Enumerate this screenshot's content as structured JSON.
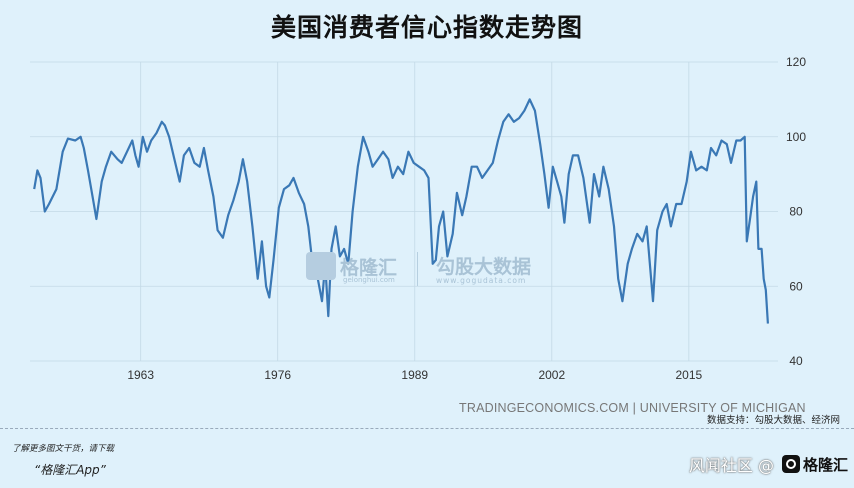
{
  "title": "美国消费者信心指数走势图",
  "source_text": "TRADINGECONOMICS.COM | UNIVERSITY OF MICHIGAN",
  "support_text": "数据支持：勾股大数据、经济网",
  "footer": {
    "download_note": "了解更多图文干货，请下载",
    "app_name": "“格隆汇App”",
    "community_text": "风闻社区 @",
    "brand": "格隆汇"
  },
  "watermarks": {
    "brand1": "格隆汇",
    "brand1_url": "gelonghui.com",
    "brand2": "勾股大数据",
    "brand2_url": "www.gogudata.com"
  },
  "colors": {
    "line": "#3a78b5",
    "background": "#dff1fb",
    "grid": "#c3d9e6"
  },
  "chart_data": {
    "type": "line",
    "title": "美国消费者信心指数走势图",
    "xlabel": "",
    "ylabel": "",
    "xlim": [
      1952.5,
      2022.7
    ],
    "ylim": [
      40,
      120
    ],
    "x_ticks": [
      1963,
      1976,
      1989,
      2002,
      2015
    ],
    "y_ticks": [
      40,
      60,
      80,
      100,
      120
    ],
    "grid": true,
    "series": [
      {
        "name": "",
        "points": [
          [
            1952.9,
            86
          ],
          [
            1953.2,
            91
          ],
          [
            1953.5,
            89
          ],
          [
            1953.9,
            80
          ],
          [
            1954.3,
            82
          ],
          [
            1955.0,
            86
          ],
          [
            1955.6,
            96
          ],
          [
            1956.1,
            99.5
          ],
          [
            1956.8,
            99
          ],
          [
            1957.3,
            100
          ],
          [
            1957.6,
            97
          ],
          [
            1958.0,
            91
          ],
          [
            1958.5,
            83
          ],
          [
            1958.8,
            78
          ],
          [
            1959.3,
            88
          ],
          [
            1959.7,
            92
          ],
          [
            1960.2,
            96
          ],
          [
            1960.8,
            94
          ],
          [
            1961.2,
            93
          ],
          [
            1961.7,
            96
          ],
          [
            1962.2,
            99
          ],
          [
            1962.5,
            95
          ],
          [
            1962.8,
            92
          ],
          [
            1963.2,
            100
          ],
          [
            1963.6,
            96
          ],
          [
            1964.0,
            99
          ],
          [
            1964.5,
            101
          ],
          [
            1965.0,
            104
          ],
          [
            1965.3,
            103
          ],
          [
            1965.7,
            100
          ],
          [
            1966.2,
            94
          ],
          [
            1966.7,
            88
          ],
          [
            1967.1,
            95
          ],
          [
            1967.6,
            97
          ],
          [
            1968.1,
            93
          ],
          [
            1968.6,
            92
          ],
          [
            1969.0,
            97
          ],
          [
            1969.4,
            91
          ],
          [
            1969.9,
            84
          ],
          [
            1970.3,
            75
          ],
          [
            1970.8,
            73
          ],
          [
            1971.3,
            79
          ],
          [
            1971.8,
            83
          ],
          [
            1972.3,
            88
          ],
          [
            1972.7,
            94
          ],
          [
            1973.1,
            88
          ],
          [
            1973.6,
            76
          ],
          [
            1974.1,
            62
          ],
          [
            1974.5,
            72
          ],
          [
            1974.9,
            60
          ],
          [
            1975.2,
            57
          ],
          [
            1975.6,
            67
          ],
          [
            1976.1,
            81
          ],
          [
            1976.6,
            86
          ],
          [
            1977.1,
            87
          ],
          [
            1977.5,
            89
          ],
          [
            1978.0,
            85
          ],
          [
            1978.5,
            82
          ],
          [
            1978.9,
            76
          ],
          [
            1979.3,
            66
          ],
          [
            1979.8,
            62
          ],
          [
            1980.2,
            56
          ],
          [
            1980.5,
            66
          ],
          [
            1980.8,
            52
          ],
          [
            1981.1,
            70
          ],
          [
            1981.5,
            76
          ],
          [
            1981.9,
            68
          ],
          [
            1982.3,
            70
          ],
          [
            1982.7,
            66
          ],
          [
            1983.1,
            80
          ],
          [
            1983.6,
            92
          ],
          [
            1984.1,
            100
          ],
          [
            1984.6,
            96
          ],
          [
            1985.0,
            92
          ],
          [
            1985.5,
            94
          ],
          [
            1986.0,
            96
          ],
          [
            1986.5,
            94
          ],
          [
            1986.9,
            89
          ],
          [
            1987.4,
            92
          ],
          [
            1987.9,
            90
          ],
          [
            1988.4,
            96
          ],
          [
            1988.9,
            93
          ],
          [
            1989.4,
            92
          ],
          [
            1989.9,
            91
          ],
          [
            1990.3,
            89
          ],
          [
            1990.7,
            66
          ],
          [
            1991.0,
            67
          ],
          [
            1991.3,
            76
          ],
          [
            1991.7,
            80
          ],
          [
            1992.1,
            68
          ],
          [
            1992.6,
            74
          ],
          [
            1993.0,
            85
          ],
          [
            1993.5,
            79
          ],
          [
            1993.9,
            84
          ],
          [
            1994.4,
            92
          ],
          [
            1994.9,
            92
          ],
          [
            1995.4,
            89
          ],
          [
            1995.9,
            91
          ],
          [
            1996.4,
            93
          ],
          [
            1996.9,
            99
          ],
          [
            1997.4,
            104
          ],
          [
            1997.9,
            106
          ],
          [
            1998.4,
            104
          ],
          [
            1998.9,
            105
          ],
          [
            1999.4,
            107
          ],
          [
            1999.9,
            110
          ],
          [
            2000.4,
            107
          ],
          [
            2000.9,
            98
          ],
          [
            2001.3,
            90
          ],
          [
            2001.7,
            81
          ],
          [
            2002.1,
            92
          ],
          [
            2002.5,
            88
          ],
          [
            2002.9,
            84
          ],
          [
            2003.2,
            77
          ],
          [
            2003.6,
            90
          ],
          [
            2004.0,
            95
          ],
          [
            2004.5,
            95
          ],
          [
            2005.0,
            89
          ],
          [
            2005.6,
            77
          ],
          [
            2006.0,
            90
          ],
          [
            2006.5,
            84
          ],
          [
            2006.9,
            92
          ],
          [
            2007.4,
            86
          ],
          [
            2007.9,
            76
          ],
          [
            2008.3,
            62
          ],
          [
            2008.7,
            56
          ],
          [
            2009.2,
            66
          ],
          [
            2009.6,
            70
          ],
          [
            2010.1,
            74
          ],
          [
            2010.6,
            72
          ],
          [
            2011.0,
            76
          ],
          [
            2011.6,
            56
          ],
          [
            2012.0,
            75
          ],
          [
            2012.5,
            80
          ],
          [
            2012.9,
            82
          ],
          [
            2013.3,
            76
          ],
          [
            2013.8,
            82
          ],
          [
            2014.3,
            82
          ],
          [
            2014.8,
            88
          ],
          [
            2015.2,
            96
          ],
          [
            2015.7,
            91
          ],
          [
            2016.2,
            92
          ],
          [
            2016.7,
            91
          ],
          [
            2017.1,
            97
          ],
          [
            2017.6,
            95
          ],
          [
            2018.1,
            99
          ],
          [
            2018.6,
            98
          ],
          [
            2019.0,
            93
          ],
          [
            2019.5,
            99
          ],
          [
            2019.9,
            99
          ],
          [
            2020.3,
            100
          ],
          [
            2020.5,
            72
          ],
          [
            2020.8,
            78
          ],
          [
            2021.1,
            84
          ],
          [
            2021.4,
            88
          ],
          [
            2021.6,
            70
          ],
          [
            2021.9,
            70
          ],
          [
            2022.1,
            62
          ],
          [
            2022.3,
            59
          ],
          [
            2022.5,
            50
          ]
        ]
      }
    ]
  }
}
